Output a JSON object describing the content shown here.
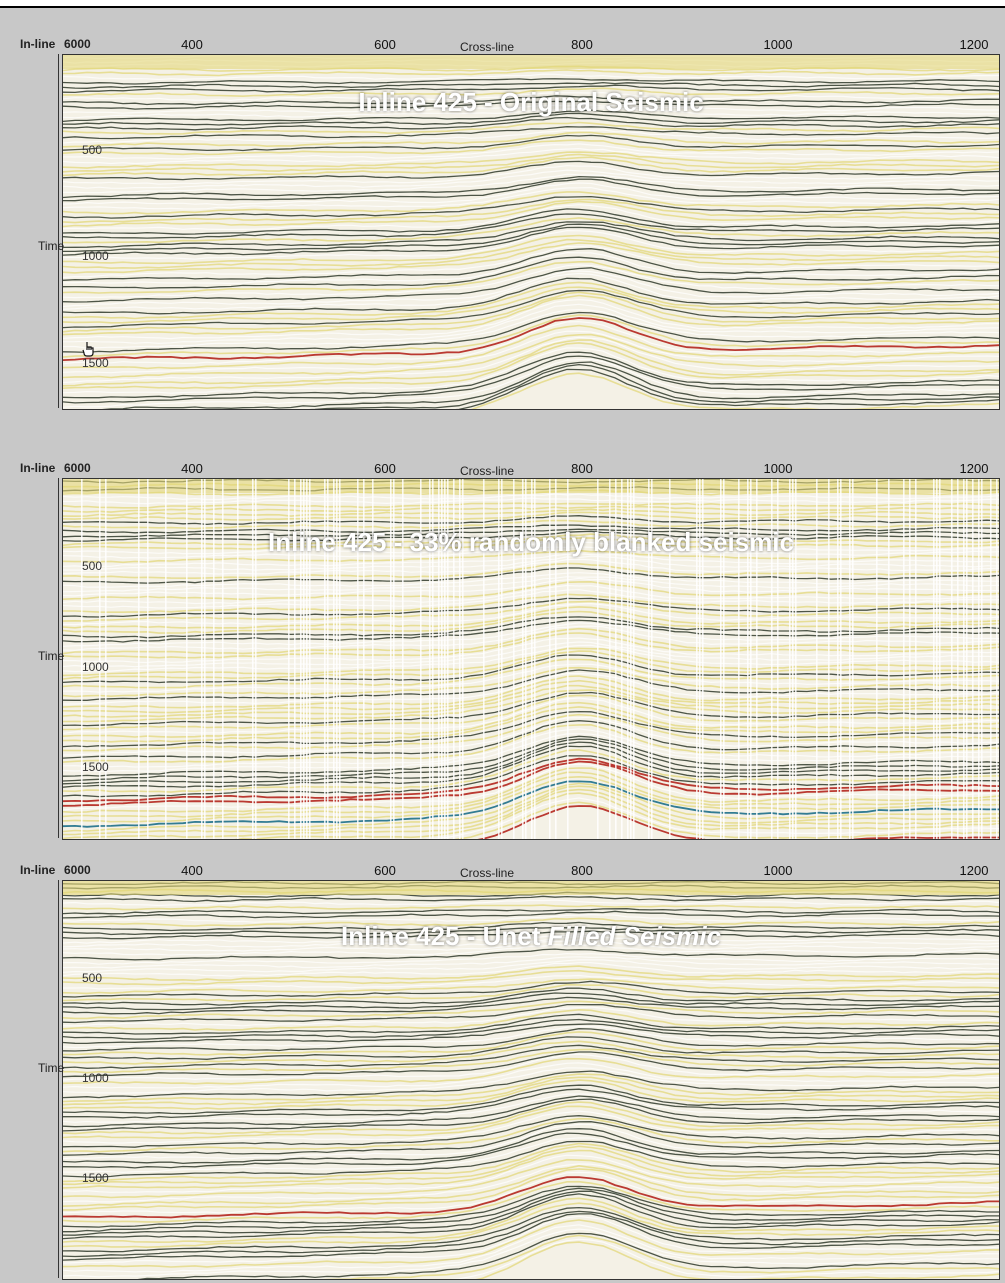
{
  "colors": {
    "background": "#c8c8c8",
    "title_text": "#ffffff",
    "seismic_light": "#f4f1e6",
    "seismic_yellow": "#e3d77a",
    "seismic_dark": "#2f3a2a",
    "seismic_red": "#b4251d",
    "seismic_blue": "#1d6f8a"
  },
  "panels": [
    {
      "corner_label": "In-line",
      "corner_value": "6000",
      "xaxis_label": "Cross-line",
      "yaxis_label": "Time",
      "x_ticks": [
        "400",
        "600",
        "800",
        "1000",
        "1200"
      ],
      "y_ticks": [
        "500",
        "1000",
        "1500"
      ],
      "title_plain": "Inline 425 - Original Seismic",
      "title_italic": "",
      "blanked": false
    },
    {
      "corner_label": "In-line",
      "corner_value": "6000",
      "xaxis_label": "Cross-line",
      "yaxis_label": "Time",
      "x_ticks": [
        "400",
        "600",
        "800",
        "1000",
        "1200"
      ],
      "y_ticks": [
        "500",
        "1000",
        "1500"
      ],
      "title_plain": "Inline 425 - 33% randomly blanked seismic",
      "title_italic": "",
      "blanked": true
    },
    {
      "corner_label": "In-line",
      "corner_value": "6000",
      "xaxis_label": "Cross-line",
      "yaxis_label": "Time",
      "x_ticks": [
        "400",
        "600",
        "800",
        "1000",
        "1200"
      ],
      "y_ticks": [
        "500",
        "1000",
        "1500"
      ],
      "title_plain": "Inline 425  - Unet ",
      "title_italic": "Filled Seismic",
      "blanked": false
    }
  ]
}
